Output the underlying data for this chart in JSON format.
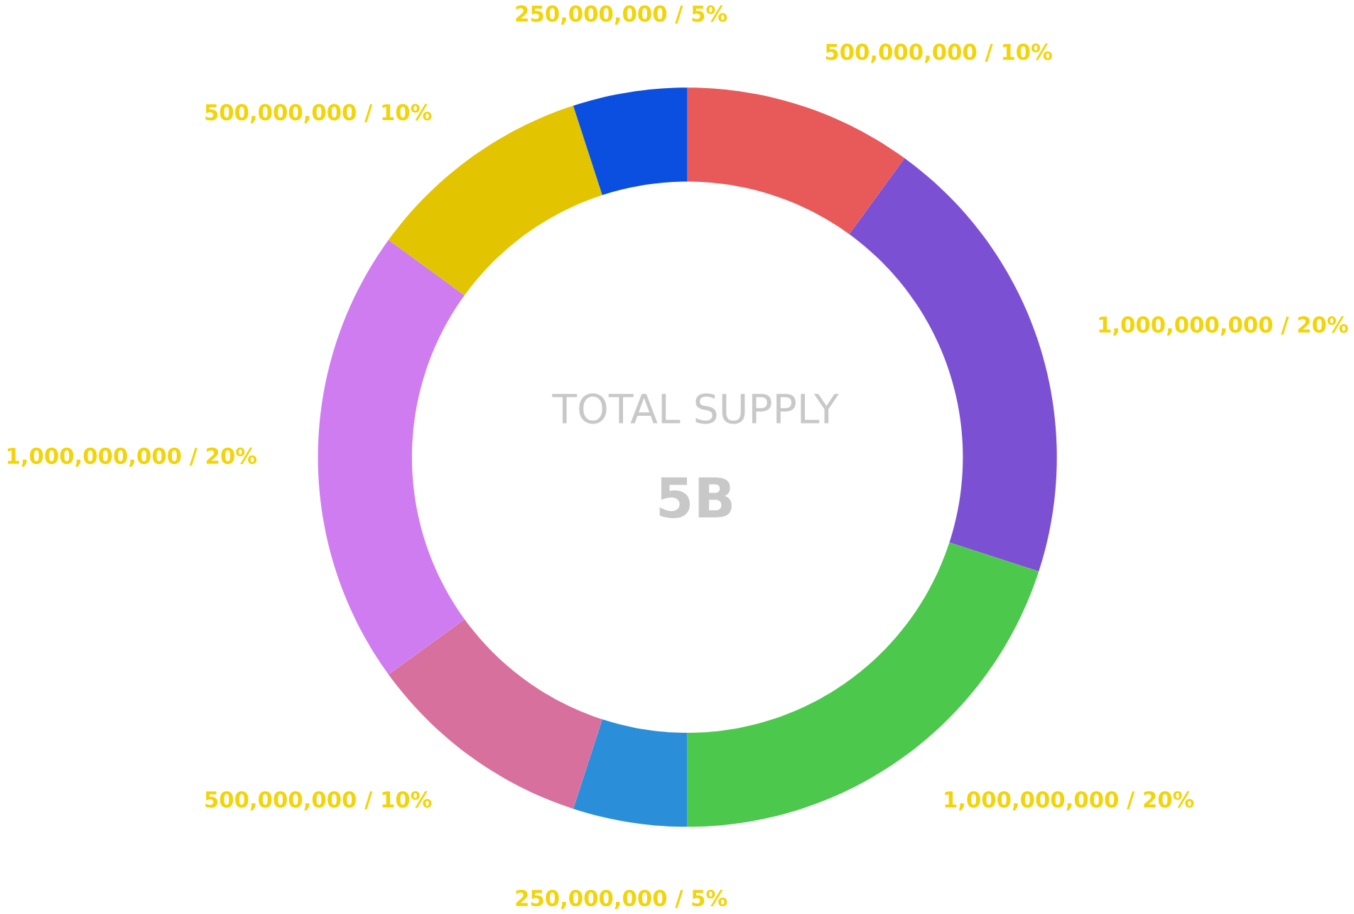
{
  "chart_data": {
    "type": "donut",
    "categories": [
      null,
      null,
      null,
      null,
      null,
      null,
      null,
      null
    ],
    "values": [
      500000000,
      1000000000,
      1000000000,
      250000000,
      500000000,
      1000000000,
      500000000,
      250000000
    ],
    "colors": [
      "#e85a5a",
      "#7c50d2",
      "#4cc84c",
      "#2a8fd8",
      "#d8709e",
      "#cf7cf0",
      "#e2c400",
      "#0a4fe0"
    ],
    "value_labels": [
      "500,000,000 / 10%",
      "1,000,000,000 / 20%",
      "1,000,000,000 / 20%",
      "250,000,000 / 5%",
      "500,000,000 / 10%",
      "1,000,000,000 / 20%",
      "500,000,000 / 10%",
      "250,000,000 / 5%"
    ],
    "annotations": [
      "TOTAL SUPPLY",
      "5B"
    ]
  }
}
